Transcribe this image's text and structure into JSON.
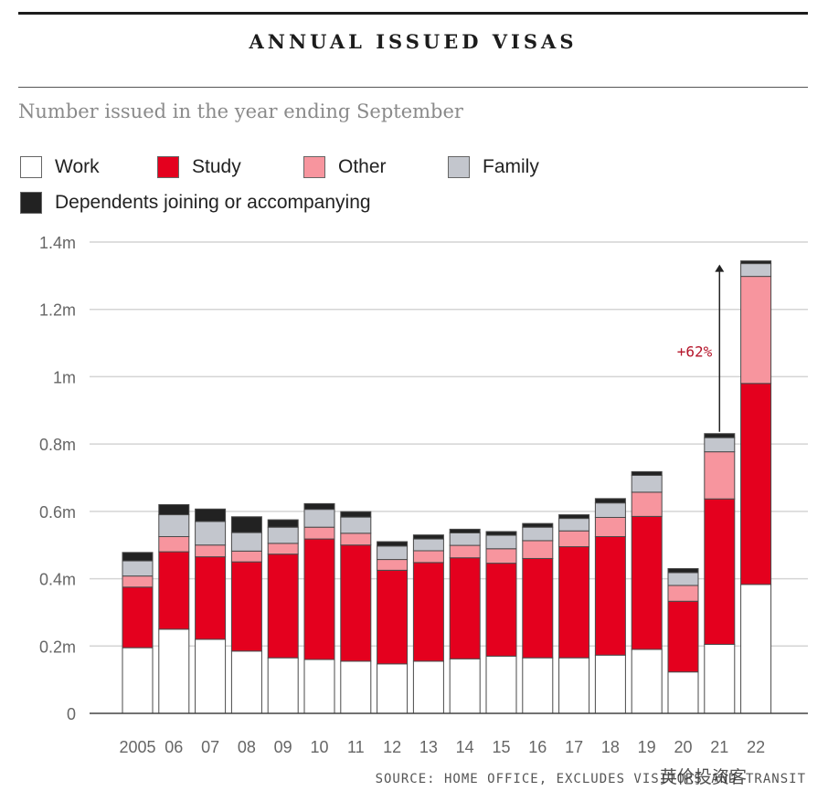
{
  "header": {
    "title": "ANNUAL ISSUED VISAS"
  },
  "subtitle": "Number issued in the year ending September",
  "legend": [
    {
      "label": "Work",
      "color": "#ffffff"
    },
    {
      "label": "Study",
      "color": "#e4001e"
    },
    {
      "label": "Other",
      "color": "#f7959e"
    },
    {
      "label": "Family",
      "color": "#c3c6cd"
    },
    {
      "label": "Dependents joining or accompanying",
      "color": "#222222"
    }
  ],
  "annotation": {
    "text": "+62%",
    "color": "#b5162b"
  },
  "footer": {
    "source": "SOURCE: HOME OFFICE, EXCLUDES VISITORS AND TRANSIT",
    "watermark": "英伦投资客"
  },
  "chart_data": {
    "type": "bar",
    "stacked": true,
    "categories": [
      "2005",
      "06",
      "07",
      "08",
      "09",
      "10",
      "11",
      "12",
      "13",
      "14",
      "15",
      "16",
      "17",
      "18",
      "19",
      "20",
      "21",
      "22"
    ],
    "series": [
      {
        "name": "Work",
        "color": "#ffffff",
        "values": [
          0.195,
          0.25,
          0.22,
          0.185,
          0.165,
          0.16,
          0.155,
          0.147,
          0.155,
          0.162,
          0.17,
          0.165,
          0.165,
          0.173,
          0.19,
          0.123,
          0.205,
          0.383
        ]
      },
      {
        "name": "Study",
        "color": "#e4001e",
        "values": [
          0.18,
          0.23,
          0.245,
          0.265,
          0.308,
          0.358,
          0.345,
          0.278,
          0.293,
          0.3,
          0.276,
          0.295,
          0.33,
          0.352,
          0.395,
          0.21,
          0.432,
          0.597
        ]
      },
      {
        "name": "Other",
        "color": "#f7959e",
        "values": [
          0.033,
          0.045,
          0.035,
          0.032,
          0.032,
          0.035,
          0.035,
          0.032,
          0.035,
          0.037,
          0.043,
          0.053,
          0.047,
          0.057,
          0.072,
          0.047,
          0.14,
          0.318
        ]
      },
      {
        "name": "Family",
        "color": "#c3c6cd",
        "values": [
          0.045,
          0.065,
          0.07,
          0.055,
          0.048,
          0.053,
          0.048,
          0.04,
          0.035,
          0.037,
          0.04,
          0.04,
          0.037,
          0.043,
          0.05,
          0.038,
          0.042,
          0.038
        ]
      },
      {
        "name": "Dependents joining or accompanying",
        "color": "#222222",
        "values": [
          0.025,
          0.03,
          0.037,
          0.047,
          0.022,
          0.017,
          0.016,
          0.013,
          0.012,
          0.011,
          0.011,
          0.011,
          0.011,
          0.013,
          0.011,
          0.012,
          0.012,
          0.008
        ]
      }
    ],
    "y_ticks": [
      {
        "value": 0,
        "label": "0"
      },
      {
        "value": 0.2,
        "label": "0.2m"
      },
      {
        "value": 0.4,
        "label": "0.4m"
      },
      {
        "value": 0.6,
        "label": "0.6m"
      },
      {
        "value": 0.8,
        "label": "0.8m"
      },
      {
        "value": 1.0,
        "label": "1m"
      },
      {
        "value": 1.2,
        "label": "1.2m"
      },
      {
        "value": 1.4,
        "label": "1.4m"
      }
    ],
    "ylim": [
      0,
      1.4
    ],
    "grid": true,
    "legend_position": "top",
    "xlabel": "",
    "ylabel": ""
  }
}
